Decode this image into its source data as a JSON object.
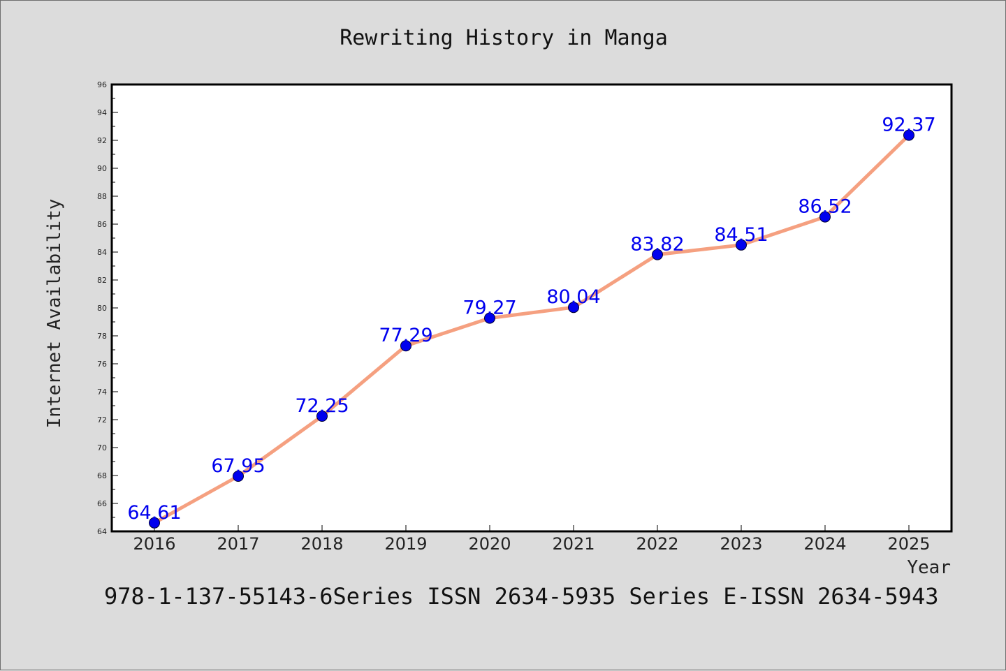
{
  "chart_data": {
    "type": "line",
    "title": "Rewriting History in Manga",
    "xlabel": "Year",
    "ylabel": "Internet Availability",
    "categories": [
      "2016",
      "2017",
      "2018",
      "2019",
      "2020",
      "2021",
      "2022",
      "2023",
      "2024",
      "2025"
    ],
    "series": [
      {
        "values": [
          64.61,
          67.95,
          72.25,
          77.29,
          79.27,
          80.04,
          83.82,
          84.51,
          86.52,
          92.37
        ],
        "data_labels": [
          "64.61",
          "67.95",
          "72.25",
          "77.29",
          "79.27",
          "80.04",
          "83.82",
          "84.51",
          "86.52",
          "92.37"
        ]
      }
    ],
    "ylim": [
      64,
      96
    ],
    "yticks": [
      "64",
      "66",
      "68",
      "70",
      "72",
      "74",
      "76",
      "78",
      "80",
      "82",
      "84",
      "86",
      "88",
      "90",
      "92",
      "94",
      "96"
    ],
    "grid": false,
    "legend": "none",
    "colors": {
      "line": "#f5a080",
      "marker": "#0000ee",
      "data_label": "#0000ee",
      "background": "#dcdcdc",
      "plot_background": "#ffffff",
      "axis": "#000000"
    }
  },
  "footer": {
    "text": "978-1-137-55143-6Series ISSN 2634-5935 Series E-ISSN 2634-5943"
  }
}
